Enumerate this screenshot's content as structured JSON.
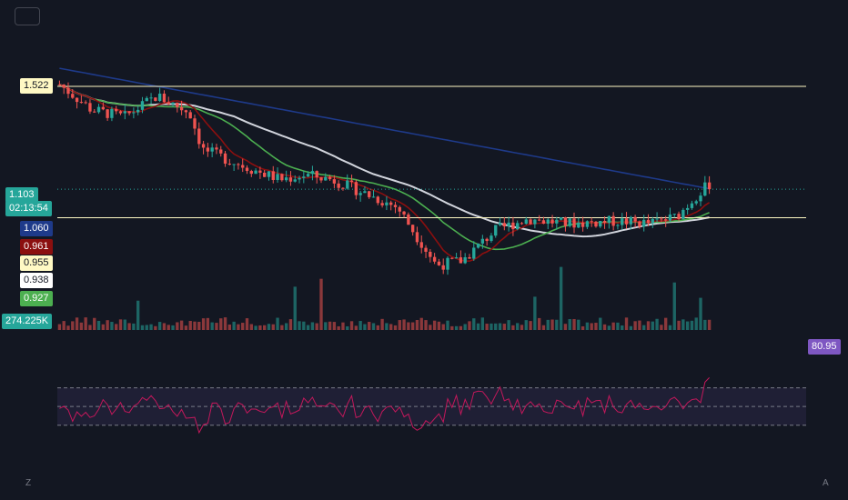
{
  "chart_data": {
    "type": "line",
    "price_axis_labels": {
      "level_high": {
        "text": "1.522",
        "bg": "#fff9c4",
        "fg": "#131722"
      },
      "last_price": {
        "text": "1.103",
        "bg": "#26a69a",
        "fg": "#ffffff"
      },
      "countdown": {
        "text": "02:13:54",
        "bg": "#26a69a",
        "fg": "#ffffff"
      },
      "ma_blue": {
        "text": "1.060",
        "bg": "#1e3a8a",
        "fg": "#ffffff"
      },
      "ma_red": {
        "text": "0.961",
        "bg": "#8b0f0f",
        "fg": "#ffffff"
      },
      "level_low": {
        "text": "0.955",
        "bg": "#fff9c4",
        "fg": "#131722"
      },
      "ma_white": {
        "text": "0.938",
        "bg": "#ffffff",
        "fg": "#131722"
      },
      "ma_green": {
        "text": "0.927",
        "bg": "#4caf50",
        "fg": "#ffffff"
      },
      "volume": {
        "text": "274.225K",
        "bg": "#26a69a",
        "fg": "#ffffff"
      },
      "rsi": {
        "text": "80.95",
        "bg": "#7e57c2",
        "fg": "#ffffff"
      }
    },
    "horizontal_levels": [
      1.522,
      0.955
    ],
    "price_range": [
      0.58,
      1.62
    ],
    "candles": {
      "count": 150,
      "up_color": "#26a69a",
      "down_color": "#ef5350"
    },
    "moving_averages": [
      {
        "color": "#1e3a8a"
      },
      {
        "color": "#d1d4dc"
      },
      {
        "color": "#4caf50"
      },
      {
        "color": "#8b0f0f"
      }
    ],
    "rsi": {
      "bands": [
        70,
        50,
        30
      ],
      "last": 80.95,
      "line_color": "#c2185b"
    },
    "corner_labels": {
      "left": "Z",
      "right": "A"
    }
  }
}
